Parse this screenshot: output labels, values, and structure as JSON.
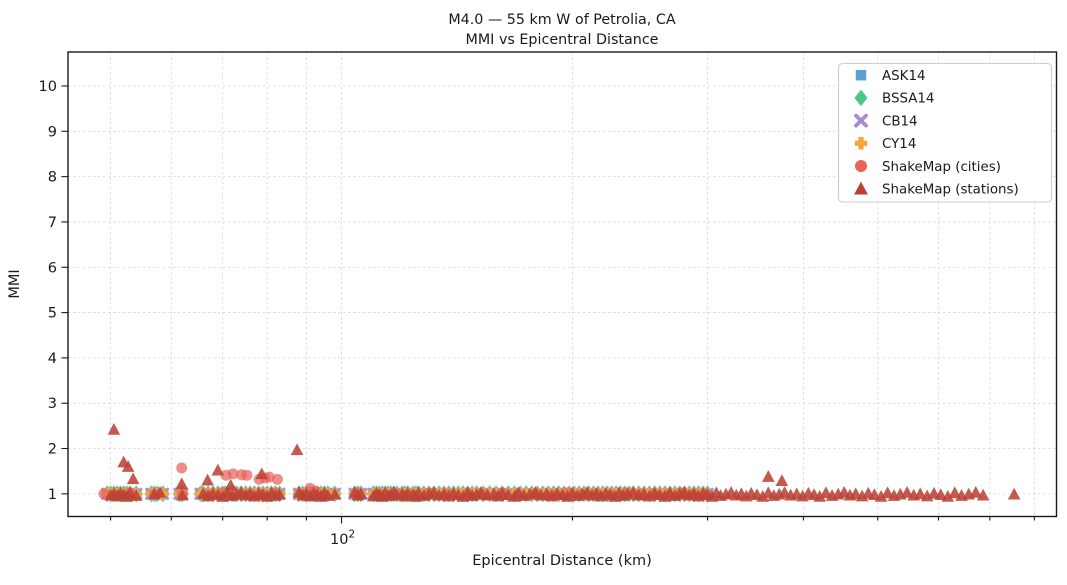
{
  "figure": {
    "title_line1": "M4.0 — 55 km W of Petrolia, CA",
    "title_line2": "MMI vs Epicentral Distance",
    "xlabel": "Epicentral Distance (km)",
    "ylabel": "MMI",
    "x_major_tick_label": {
      "base": "10",
      "exponent": "2"
    },
    "colors": {
      "background": "#ffffff",
      "grid": "#d7d7d7",
      "axis": "#1a1a1a",
      "tick_text": "#262626",
      "legend_border": "#cccccc",
      "legend_background": "#ffffff"
    }
  },
  "chart_data": {
    "type": "scatter",
    "x_scale": "log",
    "xlim": [
      44,
      855
    ],
    "ylim": [
      0.5,
      10.75
    ],
    "y_ticks": [
      1,
      2,
      3,
      4,
      5,
      6,
      7,
      8,
      9,
      10
    ],
    "x_ticks_km": [
      50,
      60,
      70,
      80,
      90,
      100,
      200,
      300,
      400,
      500,
      600,
      700,
      800
    ],
    "x_major_tick_km": 100,
    "grid": "both-dashed",
    "legend_position": "upper-right",
    "gmpe_distances_km": [
      49.5,
      50,
      50.5,
      51,
      51.5,
      52,
      52.5,
      53,
      54,
      56.5,
      57,
      57.5,
      58.5,
      61.5,
      62,
      65.5,
      66,
      67,
      68,
      69,
      70,
      70.5,
      71,
      72,
      72.5,
      73,
      74,
      75,
      76,
      77,
      78,
      79,
      80,
      81,
      82,
      83,
      88,
      89,
      90,
      91,
      92,
      93,
      94,
      95,
      96,
      98,
      104,
      105,
      106,
      110,
      111,
      112,
      113,
      114,
      115,
      116,
      117,
      118,
      120,
      121,
      122,
      124,
      125,
      126,
      128,
      130,
      132,
      134,
      136,
      138,
      140,
      142,
      144,
      146,
      148,
      150,
      153,
      156,
      159,
      162,
      165,
      168,
      171,
      174,
      177,
      180,
      183,
      186,
      189,
      192,
      195,
      198,
      201,
      204,
      207,
      210,
      213,
      216,
      219,
      222,
      225,
      228,
      231,
      234,
      237,
      240,
      244,
      248,
      252,
      256,
      260,
      264,
      268,
      272,
      276,
      280,
      284,
      288,
      292,
      296,
      300
    ],
    "series": [
      {
        "name": "ASK14",
        "marker": "square",
        "color": "#5da0d6",
        "size": 9.5,
        "opacity": 0.85,
        "distances": "gmpe_distances_km",
        "mmi": 1.0
      },
      {
        "name": "BSSA14",
        "marker": "diamond",
        "color": "#4fc487",
        "size": 13,
        "opacity": 0.85,
        "distances": "gmpe_distances_km",
        "mmi": 1.0
      },
      {
        "name": "CB14",
        "marker": "x",
        "color": "#a78bd4",
        "size": 9,
        "opacity": 0.9,
        "distances": "gmpe_distances_km",
        "mmi": 1.0
      },
      {
        "name": "CY14",
        "marker": "plus",
        "color": "#f4a63d",
        "size": 11.5,
        "opacity": 0.9,
        "distances": "gmpe_distances_km",
        "mmi": 1.0
      },
      {
        "name": "ShakeMap (cities)",
        "marker": "circle",
        "color": "#e8635a",
        "size": 11,
        "opacity": 0.72,
        "band_distances_km": [
          49,
          51,
          53,
          57,
          62,
          67,
          70,
          73,
          76,
          79,
          82,
          89,
          92,
          95,
          105,
          112,
          118,
          124,
          130,
          138,
          146,
          154,
          162,
          170,
          179,
          188,
          197,
          206,
          215,
          225,
          235,
          245,
          255,
          266,
          277,
          288,
          298
        ],
        "band_mmi_pattern": [
          1.0,
          0.98,
          1.02,
          0.99
        ],
        "points": [
          [
            61.9,
            1.57
          ],
          [
            70.7,
            1.41
          ],
          [
            72.2,
            1.44
          ],
          [
            74.1,
            1.42
          ],
          [
            75.3,
            1.41
          ],
          [
            78.1,
            1.32
          ],
          [
            79.5,
            1.35
          ],
          [
            80.5,
            1.37
          ],
          [
            82.5,
            1.32
          ],
          [
            91,
            1.12
          ],
          [
            92.5,
            1.06
          ]
        ]
      },
      {
        "name": "ShakeMap (stations)",
        "marker": "triangle",
        "color": "#bb4237",
        "size": 10.5,
        "opacity": 0.88,
        "band_distances_km": [
          50,
          50.5,
          51,
          51.5,
          52,
          52.5,
          53,
          54,
          57,
          58,
          62,
          66,
          67,
          68,
          69,
          70,
          71,
          72,
          73,
          74,
          75,
          76,
          77,
          78,
          79,
          80,
          81,
          82,
          83,
          88,
          89,
          90,
          91,
          92,
          93,
          94,
          95,
          96,
          98,
          104,
          105,
          106,
          110,
          111,
          112,
          113,
          114,
          115,
          116,
          117,
          118,
          120,
          121,
          122,
          124,
          125,
          126,
          128,
          130,
          132,
          134,
          136,
          138,
          140,
          142,
          144,
          146,
          148,
          150,
          152,
          155,
          158,
          160,
          162,
          165,
          168,
          170,
          173,
          176,
          179,
          182,
          185,
          188,
          191,
          194,
          197,
          200,
          203,
          206,
          209,
          212,
          215,
          218,
          221,
          224,
          227,
          230,
          233,
          236,
          240,
          244,
          248,
          252,
          256,
          260,
          264,
          268,
          272,
          276,
          280,
          284,
          288,
          292,
          296,
          300,
          304,
          308,
          312,
          317,
          322,
          327,
          332,
          337,
          342,
          348,
          354,
          360,
          366,
          372,
          378,
          385,
          392,
          399,
          406,
          413,
          420,
          428,
          436,
          444,
          452,
          460,
          468,
          477,
          486,
          495,
          505,
          515,
          525,
          535,
          546,
          557,
          568,
          580,
          592,
          604,
          617,
          630,
          643,
          657,
          671,
          686
        ],
        "band_mmi_pattern": [
          0.97,
          1.0,
          0.95,
          1.01,
          0.98,
          0.94,
          1.02,
          0.96,
          0.99,
          1.03
        ],
        "points": [
          [
            50.5,
            2.42
          ],
          [
            52,
            1.7
          ],
          [
            52.7,
            1.6
          ],
          [
            53.5,
            1.33
          ],
          [
            61.9,
            1.22
          ],
          [
            66.9,
            1.3
          ],
          [
            69,
            1.52
          ],
          [
            71.7,
            1.19
          ],
          [
            78.7,
            1.44
          ],
          [
            87.5,
            1.97
          ],
          [
            360,
            1.38
          ],
          [
            375,
            1.29
          ],
          [
            753,
            0.99
          ]
        ]
      }
    ]
  }
}
